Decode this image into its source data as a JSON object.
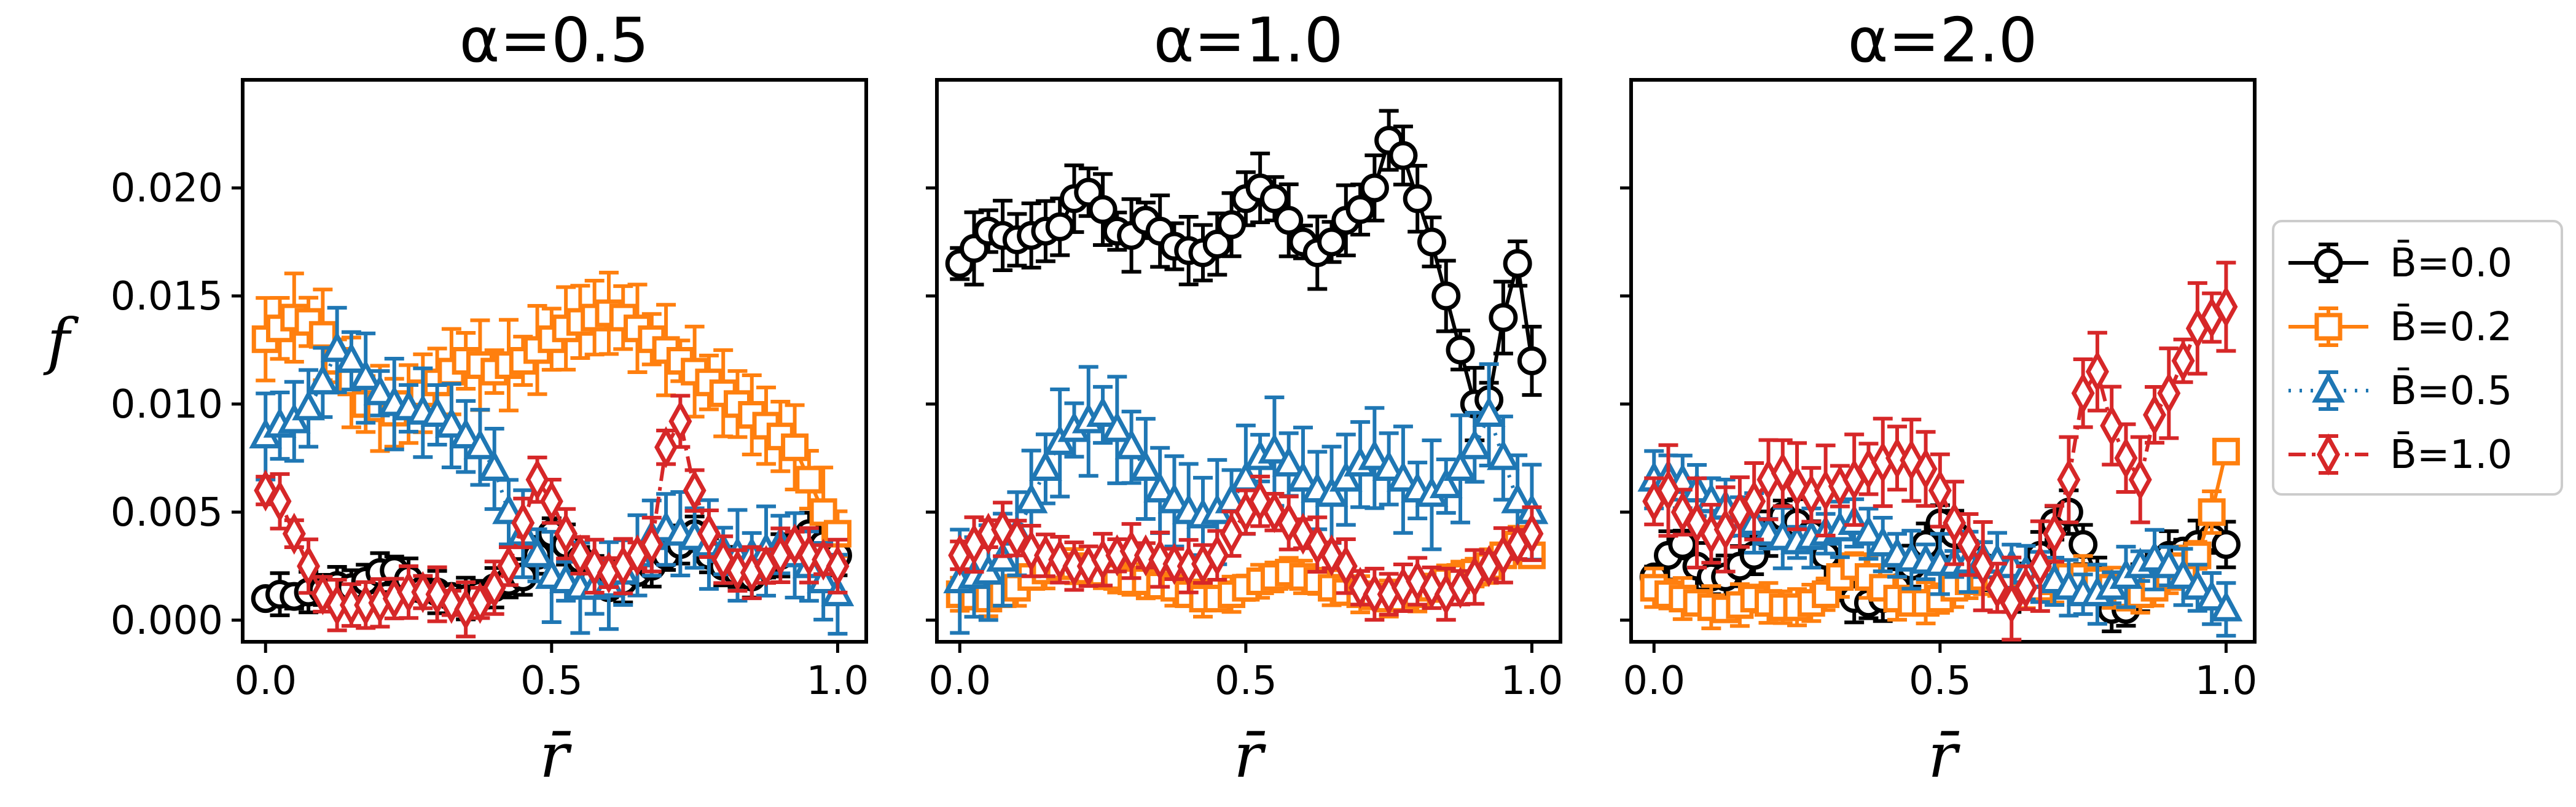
{
  "figure": {
    "ylabel": "f",
    "xlabel": "r̄",
    "colors": {
      "B0": "#000000",
      "B02": "#ff7f0e",
      "B05": "#1f77b4",
      "B10": "#d62728"
    }
  },
  "legend": {
    "placement": "right-center",
    "entries": [
      {
        "label": "B̄=0.0",
        "color": "#000000",
        "marker": "circle",
        "line": "solid"
      },
      {
        "label": "B̄=0.2",
        "color": "#ff7f0e",
        "marker": "square",
        "line": "solid"
      },
      {
        "label": "B̄=0.5",
        "color": "#1f77b4",
        "marker": "triangle",
        "line": "dotted"
      },
      {
        "label": "B̄=1.0",
        "color": "#d62728",
        "marker": "diamond",
        "line": "dashdot"
      }
    ]
  },
  "chart_data": [
    {
      "type": "scatter",
      "title": "α=0.5",
      "xlim": [
        -0.04,
        1.05
      ],
      "ylim": [
        -0.001,
        0.025
      ],
      "xticks": [
        "0.0",
        "0.5",
        "1.0"
      ],
      "yticks": [
        "0.000",
        "0.005",
        "0.010",
        "0.015",
        "0.020"
      ],
      "x": [
        0.0,
        0.025,
        0.05,
        0.075,
        0.1,
        0.125,
        0.15,
        0.175,
        0.2,
        0.225,
        0.25,
        0.275,
        0.3,
        0.325,
        0.35,
        0.375,
        0.4,
        0.425,
        0.45,
        0.475,
        0.5,
        0.525,
        0.55,
        0.575,
        0.6,
        0.625,
        0.65,
        0.675,
        0.7,
        0.725,
        0.75,
        0.775,
        0.8,
        0.825,
        0.85,
        0.875,
        0.9,
        0.925,
        0.95,
        0.975,
        1.0
      ],
      "series": [
        {
          "name": "B̄=0.0",
          "marker": "circle",
          "err": 0.0007,
          "values": [
            0.001,
            0.0012,
            0.0011,
            0.0013,
            0.0014,
            0.0016,
            0.0015,
            0.0018,
            0.0022,
            0.0023,
            0.0019,
            0.0014,
            0.0013,
            0.0011,
            0.001,
            0.0012,
            0.0015,
            0.0018,
            0.002,
            0.003,
            0.004,
            0.0035,
            0.0028,
            0.002,
            0.0015,
            0.0018,
            0.0022,
            0.0025,
            0.003,
            0.0035,
            0.004,
            0.003,
            0.0025,
            0.0022,
            0.002,
            0.0025,
            0.003,
            0.0035,
            0.004,
            0.0035,
            0.003
          ]
        },
        {
          "name": "B̄=0.2",
          "marker": "square",
          "err": 0.0015,
          "values": [
            0.013,
            0.0135,
            0.014,
            0.0138,
            0.0132,
            0.012,
            0.011,
            0.01,
            0.0098,
            0.0096,
            0.01,
            0.0105,
            0.011,
            0.0115,
            0.012,
            0.0118,
            0.0115,
            0.0118,
            0.012,
            0.0125,
            0.013,
            0.0135,
            0.0138,
            0.014,
            0.0142,
            0.014,
            0.0135,
            0.013,
            0.0125,
            0.012,
            0.0115,
            0.011,
            0.0105,
            0.01,
            0.0095,
            0.009,
            0.0085,
            0.008,
            0.0065,
            0.005,
            0.004
          ]
        },
        {
          "name": "B̄=0.5",
          "marker": "triangle",
          "err": 0.0015,
          "values": [
            0.0085,
            0.009,
            0.0092,
            0.0098,
            0.011,
            0.0125,
            0.012,
            0.0112,
            0.0105,
            0.01,
            0.0098,
            0.0096,
            0.0095,
            0.009,
            0.0085,
            0.008,
            0.007,
            0.005,
            0.004,
            0.003,
            0.002,
            0.0018,
            0.0015,
            0.0015,
            0.0016,
            0.0022,
            0.003,
            0.0038,
            0.0042,
            0.004,
            0.0038,
            0.0035,
            0.0032,
            0.003,
            0.003,
            0.0032,
            0.0035,
            0.003,
            0.0025,
            0.0018,
            0.0012
          ]
        },
        {
          "name": "B̄=1.0",
          "marker": "diamond",
          "err": 0.0009,
          "values": [
            0.006,
            0.0055,
            0.004,
            0.0025,
            0.0012,
            0.0007,
            0.0007,
            0.0007,
            0.0008,
            0.001,
            0.0013,
            0.0013,
            0.0012,
            0.0008,
            0.0005,
            0.0008,
            0.0015,
            0.0025,
            0.0045,
            0.0065,
            0.0055,
            0.004,
            0.003,
            0.0025,
            0.0022,
            0.0025,
            0.003,
            0.0035,
            0.008,
            0.0092,
            0.006,
            0.004,
            0.0028,
            0.0023,
            0.0022,
            0.0025,
            0.003,
            0.0035,
            0.003,
            0.0028,
            0.0025
          ]
        }
      ]
    },
    {
      "type": "scatter",
      "title": "α=1.0",
      "xlim": [
        -0.04,
        1.05
      ],
      "ylim": [
        -0.001,
        0.025
      ],
      "xticks": [
        "0.0",
        "0.5",
        "1.0"
      ],
      "yticks": [
        "0.000",
        "0.005",
        "0.010",
        "0.015",
        "0.020"
      ],
      "x": [
        0.0,
        0.025,
        0.05,
        0.075,
        0.1,
        0.125,
        0.15,
        0.175,
        0.2,
        0.225,
        0.25,
        0.275,
        0.3,
        0.325,
        0.35,
        0.375,
        0.4,
        0.425,
        0.45,
        0.475,
        0.5,
        0.525,
        0.55,
        0.575,
        0.6,
        0.625,
        0.65,
        0.675,
        0.7,
        0.725,
        0.75,
        0.775,
        0.8,
        0.825,
        0.85,
        0.875,
        0.9,
        0.925,
        0.95,
        0.975,
        1.0
      ],
      "series": [
        {
          "name": "B̄=0.0",
          "marker": "circle",
          "err": 0.0012,
          "values": [
            0.0165,
            0.0172,
            0.018,
            0.0178,
            0.0176,
            0.0178,
            0.018,
            0.0182,
            0.0195,
            0.0198,
            0.019,
            0.018,
            0.0178,
            0.0185,
            0.018,
            0.0173,
            0.0171,
            0.017,
            0.0174,
            0.0183,
            0.0195,
            0.02,
            0.0195,
            0.0185,
            0.0175,
            0.017,
            0.0175,
            0.0185,
            0.019,
            0.02,
            0.0222,
            0.0215,
            0.0195,
            0.0175,
            0.015,
            0.0125,
            0.01,
            0.0102,
            0.014,
            0.0165,
            0.012
          ]
        },
        {
          "name": "B̄=0.2",
          "marker": "square",
          "err": 0.0006,
          "values": [
            0.0012,
            0.0011,
            0.001,
            0.0012,
            0.0015,
            0.002,
            0.0023,
            0.0025,
            0.0025,
            0.0023,
            0.0022,
            0.002,
            0.0018,
            0.0018,
            0.0016,
            0.0015,
            0.0012,
            0.001,
            0.001,
            0.0012,
            0.0015,
            0.0018,
            0.002,
            0.0022,
            0.002,
            0.0018,
            0.0015,
            0.0013,
            0.0012,
            0.0011,
            0.001,
            0.001,
            0.0012,
            0.0015,
            0.0018,
            0.002,
            0.0022,
            0.0025,
            0.003,
            0.0035,
            0.003
          ]
        },
        {
          "name": "B̄=0.5",
          "marker": "triangle",
          "err": 0.0018,
          "values": [
            0.0018,
            0.002,
            0.0022,
            0.0028,
            0.004,
            0.0055,
            0.007,
            0.0082,
            0.0088,
            0.0092,
            0.0095,
            0.0088,
            0.008,
            0.007,
            0.006,
            0.0055,
            0.005,
            0.0048,
            0.005,
            0.0055,
            0.0065,
            0.0075,
            0.0078,
            0.0072,
            0.0065,
            0.006,
            0.0058,
            0.0065,
            0.0072,
            0.0075,
            0.007,
            0.0065,
            0.006,
            0.0058,
            0.0062,
            0.007,
            0.008,
            0.0095,
            0.0075,
            0.0055,
            0.005
          ]
        },
        {
          "name": "B̄=1.0",
          "marker": "diamond",
          "err": 0.0009,
          "values": [
            0.003,
            0.0035,
            0.004,
            0.0042,
            0.0038,
            0.0032,
            0.003,
            0.0028,
            0.0025,
            0.0025,
            0.0028,
            0.003,
            0.0032,
            0.003,
            0.0028,
            0.0026,
            0.0025,
            0.0026,
            0.003,
            0.004,
            0.005,
            0.0055,
            0.005,
            0.0045,
            0.004,
            0.0035,
            0.003,
            0.0025,
            0.0015,
            0.0012,
            0.0012,
            0.0015,
            0.0018,
            0.0015,
            0.0012,
            0.0015,
            0.002,
            0.0025,
            0.003,
            0.0035,
            0.004
          ]
        }
      ]
    },
    {
      "type": "scatter",
      "title": "α=2.0",
      "xlim": [
        -0.04,
        1.05
      ],
      "ylim": [
        -0.001,
        0.025
      ],
      "xticks": [
        "0.0",
        "0.5",
        "1.0"
      ],
      "yticks": [
        "0.000",
        "0.005",
        "0.010",
        "0.015",
        "0.020"
      ],
      "x": [
        0.0,
        0.025,
        0.05,
        0.075,
        0.1,
        0.125,
        0.15,
        0.175,
        0.2,
        0.225,
        0.25,
        0.275,
        0.3,
        0.325,
        0.35,
        0.375,
        0.4,
        0.425,
        0.45,
        0.475,
        0.5,
        0.525,
        0.55,
        0.575,
        0.6,
        0.625,
        0.65,
        0.675,
        0.7,
        0.725,
        0.75,
        0.775,
        0.8,
        0.825,
        0.85,
        0.875,
        0.9,
        0.925,
        0.95,
        0.975,
        1.0
      ],
      "series": [
        {
          "name": "B̄=0.0",
          "marker": "circle",
          "err": 0.0008,
          "values": [
            0.002,
            0.003,
            0.0035,
            0.0025,
            0.002,
            0.002,
            0.0025,
            0.003,
            0.004,
            0.0048,
            0.0045,
            0.004,
            0.003,
            0.0015,
            0.001,
            0.0008,
            0.001,
            0.0015,
            0.0025,
            0.0035,
            0.0045,
            0.004,
            0.003,
            0.0025,
            0.002,
            0.0015,
            0.002,
            0.003,
            0.0045,
            0.005,
            0.0035,
            0.002,
            0.0005,
            0.0005,
            0.0015,
            0.0025,
            0.003,
            0.0032,
            0.0035,
            0.0038,
            0.0035
          ]
        },
        {
          "name": "B̄=0.2",
          "marker": "square",
          "err": 0.0007,
          "values": [
            0.0015,
            0.0012,
            0.001,
            0.0008,
            0.0006,
            0.0005,
            0.0007,
            0.001,
            0.0008,
            0.0006,
            0.0006,
            0.0008,
            0.0012,
            0.002,
            0.0025,
            0.002,
            0.0015,
            0.001,
            0.0008,
            0.0008,
            0.001,
            0.0015,
            0.0018,
            0.002,
            0.002,
            0.0018,
            0.0015,
            0.0015,
            0.0018,
            0.002,
            0.002,
            0.0018,
            0.0015,
            0.0012,
            0.0012,
            0.0015,
            0.002,
            0.0025,
            0.003,
            0.005,
            0.0078
          ]
        },
        {
          "name": "B̄=0.5",
          "marker": "triangle",
          "err": 0.001,
          "values": [
            0.0065,
            0.0066,
            0.0064,
            0.006,
            0.0055,
            0.0052,
            0.0048,
            0.0045,
            0.004,
            0.0038,
            0.0036,
            0.0038,
            0.004,
            0.0042,
            0.0045,
            0.004,
            0.0035,
            0.003,
            0.0028,
            0.0027,
            0.0026,
            0.0026,
            0.0027,
            0.0028,
            0.0027,
            0.0025,
            0.0022,
            0.002,
            0.0018,
            0.0015,
            0.0012,
            0.0012,
            0.0015,
            0.002,
            0.0025,
            0.0028,
            0.0025,
            0.002,
            0.0015,
            0.001,
            0.0005
          ]
        },
        {
          "name": "B̄=1.0",
          "marker": "diamond",
          "err": 0.0015,
          "values": [
            0.0055,
            0.006,
            0.005,
            0.0045,
            0.004,
            0.0042,
            0.005,
            0.0055,
            0.0065,
            0.0068,
            0.0062,
            0.0058,
            0.006,
            0.0062,
            0.0065,
            0.007,
            0.0073,
            0.0075,
            0.0074,
            0.007,
            0.006,
            0.0045,
            0.0035,
            0.0025,
            0.0015,
            0.0008,
            0.0015,
            0.0025,
            0.004,
            0.0065,
            0.0105,
            0.0115,
            0.009,
            0.0075,
            0.0065,
            0.0095,
            0.0105,
            0.012,
            0.0135,
            0.014,
            0.0145
          ]
        }
      ]
    }
  ]
}
